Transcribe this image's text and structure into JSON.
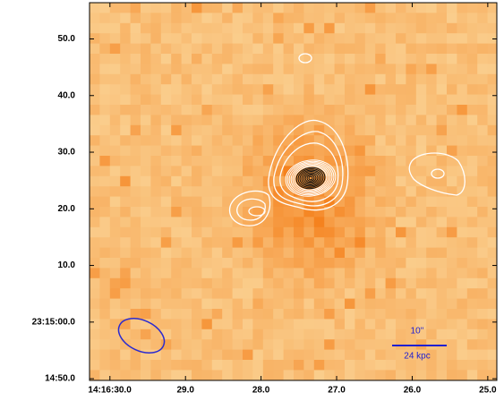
{
  "chart_data": {
    "type": "image",
    "xlim": [
      30.27,
      24.88
    ],
    "ylim": [
      -10.3,
      56.4
    ],
    "xticks": [
      {
        "value": 30,
        "label": "14:16:30.0"
      },
      {
        "value": 29,
        "label": "29.0"
      },
      {
        "value": 28,
        "label": "28.0"
      },
      {
        "value": 27,
        "label": "27.0"
      },
      {
        "value": 26,
        "label": "26.0"
      },
      {
        "value": 25,
        "label": "25.0"
      }
    ],
    "yticks": [
      {
        "value": -10,
        "label": "14:50.0"
      },
      {
        "value": 0,
        "label": "23:15:00.0"
      },
      {
        "value": 10,
        "label": "10.0"
      },
      {
        "value": 20,
        "label": "20.0"
      },
      {
        "value": 30,
        "label": "30.0"
      },
      {
        "value": 40,
        "label": "40.0"
      },
      {
        "value": 50,
        "label": "50.0"
      }
    ],
    "annotations": [
      "10''",
      "24 kpc"
    ]
  }
}
